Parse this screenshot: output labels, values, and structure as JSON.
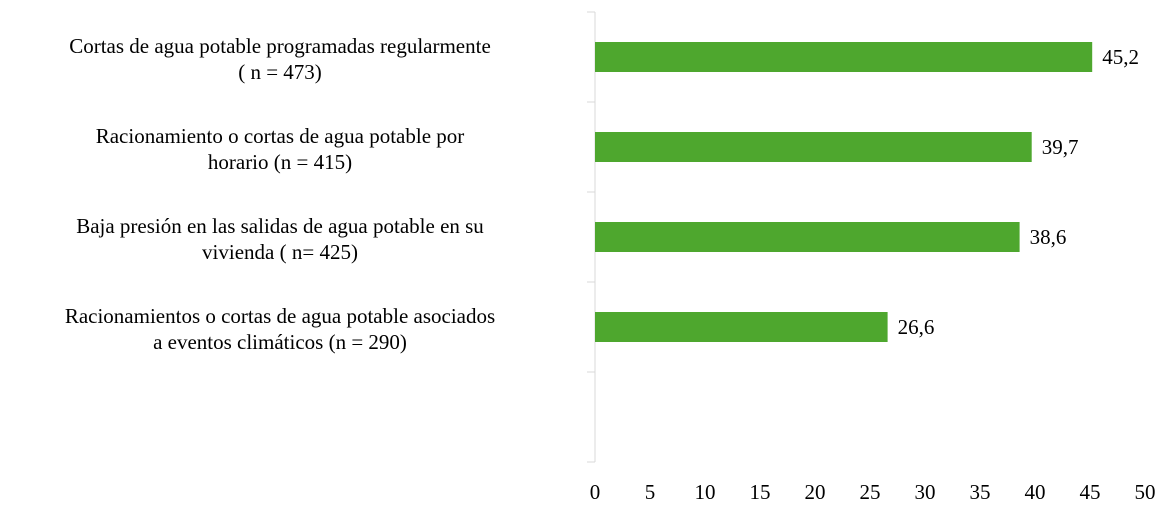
{
  "chart_data": {
    "type": "barh",
    "categories": [
      "Cortas de agua potable programadas regularmente\n( n = 473)",
      "Racionamiento o cortas de agua potable por\nhorario (n = 415)",
      "Baja presión en las salidas de agua potable en su\nvivienda ( n= 425)",
      "Racionamientos o cortas de agua potable asociados\na eventos climáticos (n = 290)",
      null
    ],
    "values": [
      45.2,
      39.7,
      38.6,
      26.6,
      null
    ],
    "value_labels": [
      "45,2",
      "39,7",
      "38,6",
      "26,6",
      null
    ],
    "color": "#4ea72e",
    "xlim": [
      0,
      50
    ],
    "xticks": [
      0,
      5,
      10,
      15,
      20,
      25,
      30,
      35,
      40,
      45,
      50
    ]
  }
}
